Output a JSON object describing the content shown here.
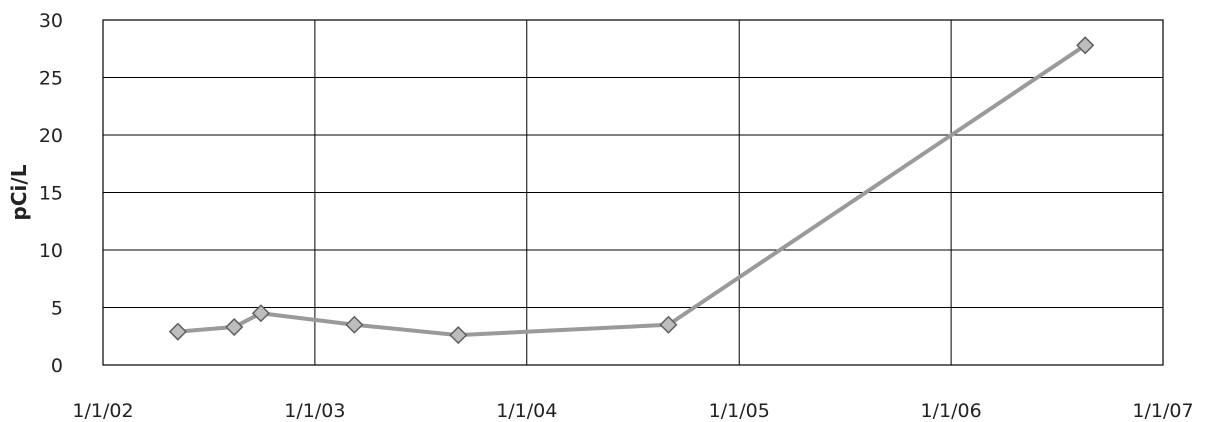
{
  "chart_data": {
    "type": "line",
    "title": "",
    "xlabel": "",
    "ylabel": "pCi/L",
    "ylim": [
      0,
      30
    ],
    "xlim": [
      "1/1/02",
      "1/1/07"
    ],
    "x_ticks": [
      "1/1/02",
      "1/1/03",
      "1/1/04",
      "1/1/05",
      "1/1/06",
      "1/1/07"
    ],
    "y_ticks": [
      0,
      5,
      10,
      15,
      20,
      25,
      30
    ],
    "grid": true,
    "legend": "none",
    "series": [
      {
        "color": "#9a9a9a",
        "marker": "diamond",
        "points": [
          {
            "x": "2002-05-10",
            "y": 2.9
          },
          {
            "x": "2002-08-15",
            "y": 3.3
          },
          {
            "x": "2002-09-30",
            "y": 4.5
          },
          {
            "x": "2003-03-10",
            "y": 3.5
          },
          {
            "x": "2003-09-05",
            "y": 2.6
          },
          {
            "x": "2004-09-01",
            "y": 3.5
          },
          {
            "x": "2006-08-20",
            "y": 27.8
          }
        ]
      }
    ]
  }
}
